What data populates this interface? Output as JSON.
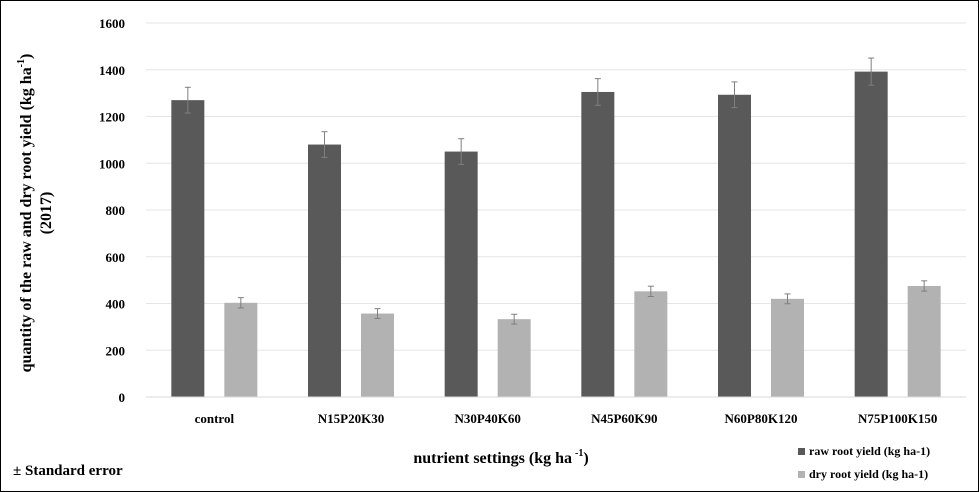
{
  "chart_data": {
    "type": "bar",
    "categories": [
      "control",
      "N15P20K30",
      "N30P40K60",
      "N45P60K90",
      "N60P80K120",
      "N75P100K150"
    ],
    "series": [
      {
        "name": "raw root yield (kg ha-1)",
        "values": [
          1270,
          1080,
          1050,
          1305,
          1293,
          1392
        ],
        "errors": [
          55,
          55,
          55,
          57,
          55,
          58
        ],
        "color": "#595959"
      },
      {
        "name": "dry root yield (kg ha-1)",
        "values": [
          403,
          357,
          333,
          452,
          420,
          475
        ],
        "errors": [
          22,
          21,
          21,
          22,
          21,
          22
        ],
        "color": "#b2b2b2"
      }
    ],
    "xlabel": "nutrient settings (kg ha",
    "xlabel_sup": "-1",
    "xlabel_end": ")",
    "ylabel_line1_pre": "quantity of the raw and dry root yield  (kg ha",
    "ylabel_line1_sup": "-1",
    "ylabel_line1_end": ")",
    "ylabel_line2": "(2017)",
    "ylim": [
      0,
      1600
    ],
    "yticks": [
      "0",
      "200",
      "400",
      "600",
      "800",
      "1000",
      "1200",
      "1400",
      "1600"
    ],
    "grid": true,
    "legend_position": "bottom-right",
    "note": "± Standard error"
  }
}
